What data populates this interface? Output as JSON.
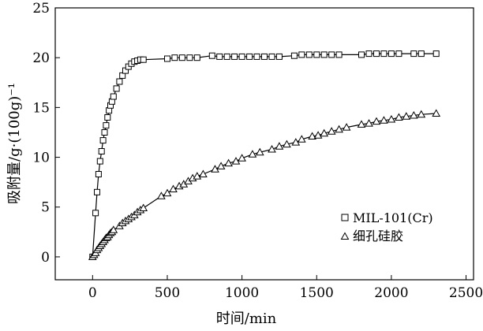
{
  "chart_data": {
    "type": "scatter",
    "xlabel": "时间/min",
    "ylabel": "吸附量/g·(100g)⁻¹",
    "xlim": [
      -250,
      2550
    ],
    "ylim": [
      -2.3,
      25
    ],
    "x_ticks": [
      0,
      500,
      1000,
      1500,
      2000,
      2500
    ],
    "y_ticks": [
      0,
      5,
      10,
      15,
      20,
      25
    ],
    "x_tick_labels": [
      "0",
      "500",
      "1000",
      "1500",
      "2000",
      "2500"
    ],
    "y_tick_labels": [
      "0",
      "5",
      "10",
      "15",
      "20",
      "25"
    ],
    "grid": false,
    "legend_position": "lower-right",
    "series": [
      {
        "name": "MIL-101(Cr)",
        "marker": "square",
        "x": [
          0,
          20,
          30,
          40,
          50,
          60,
          70,
          80,
          90,
          100,
          110,
          120,
          130,
          140,
          160,
          180,
          200,
          220,
          240,
          260,
          280,
          300,
          320,
          340,
          500,
          550,
          600,
          650,
          700,
          800,
          850,
          900,
          950,
          1000,
          1050,
          1100,
          1150,
          1200,
          1250,
          1350,
          1400,
          1450,
          1500,
          1550,
          1600,
          1650,
          1800,
          1850,
          1900,
          1950,
          2000,
          2050,
          2150,
          2200,
          2300
        ],
        "y": [
          0,
          4.4,
          6.5,
          8.3,
          9.6,
          10.6,
          11.7,
          12.5,
          13.2,
          14.0,
          14.7,
          15.2,
          15.6,
          16.1,
          16.9,
          17.6,
          18.2,
          18.7,
          19.1,
          19.4,
          19.6,
          19.7,
          19.8,
          19.8,
          19.9,
          20.0,
          20.0,
          20.0,
          20.0,
          20.2,
          20.1,
          20.1,
          20.1,
          20.1,
          20.1,
          20.1,
          20.1,
          20.1,
          20.1,
          20.2,
          20.3,
          20.3,
          20.3,
          20.3,
          20.3,
          20.3,
          20.3,
          20.4,
          20.4,
          20.4,
          20.4,
          20.4,
          20.4,
          20.4,
          20.4
        ]
      },
      {
        "name": "细孔硅胶",
        "marker": "triangle",
        "x": [
          0,
          10,
          20,
          30,
          40,
          50,
          60,
          70,
          80,
          90,
          100,
          110,
          120,
          130,
          140,
          180,
          200,
          220,
          240,
          260,
          280,
          300,
          320,
          340,
          460,
          500,
          540,
          580,
          610,
          640,
          670,
          700,
          740,
          820,
          860,
          910,
          960,
          1000,
          1070,
          1120,
          1200,
          1250,
          1300,
          1360,
          1400,
          1470,
          1510,
          1550,
          1600,
          1650,
          1700,
          1800,
          1850,
          1900,
          1950,
          2000,
          2050,
          2100,
          2150,
          2200,
          2300
        ],
        "y": [
          0,
          0.2,
          0.4,
          0.7,
          0.9,
          1.1,
          1.3,
          1.5,
          1.7,
          1.9,
          2.0,
          2.2,
          2.4,
          2.5,
          2.7,
          3.1,
          3.4,
          3.6,
          3.8,
          4.0,
          4.2,
          4.5,
          4.7,
          4.9,
          6.1,
          6.4,
          6.8,
          7.1,
          7.3,
          7.6,
          7.9,
          8.1,
          8.3,
          8.8,
          9.1,
          9.4,
          9.6,
          9.9,
          10.3,
          10.5,
          10.8,
          11.1,
          11.3,
          11.5,
          11.8,
          12.1,
          12.2,
          12.4,
          12.6,
          12.8,
          13.0,
          13.3,
          13.4,
          13.6,
          13.7,
          13.8,
          14.0,
          14.1,
          14.2,
          14.3,
          14.4
        ]
      }
    ]
  }
}
